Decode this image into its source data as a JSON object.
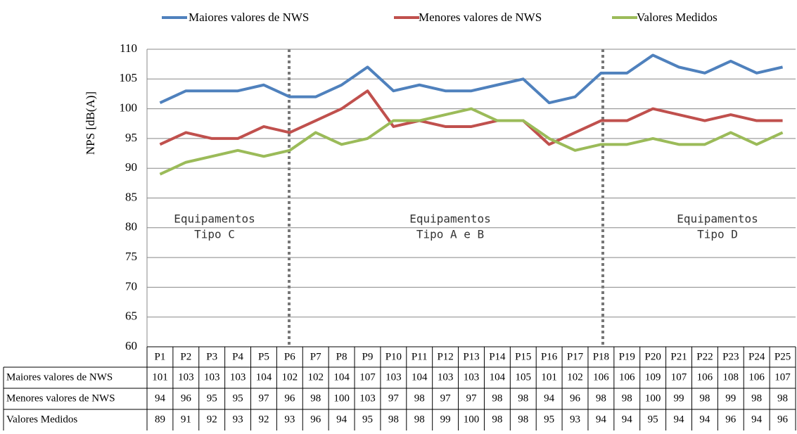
{
  "chart_data": {
    "type": "line",
    "y_label": "NPS [dB(A)]",
    "categories": [
      "P1",
      "P2",
      "P3",
      "P4",
      "P5",
      "P6",
      "P7",
      "P8",
      "P9",
      "P10",
      "P11",
      "P12",
      "P13",
      "P14",
      "P15",
      "P16",
      "P17",
      "P18",
      "P19",
      "P20",
      "P21",
      "P22",
      "P23",
      "P24",
      "P25"
    ],
    "series": [
      {
        "name": "Maiores valores  de NWS",
        "color": "#4f81bd",
        "values": [
          101,
          103,
          103,
          103,
          104,
          102,
          102,
          104,
          107,
          103,
          104,
          103,
          103,
          104,
          105,
          101,
          102,
          106,
          106,
          109,
          107,
          106,
          108,
          106,
          107
        ]
      },
      {
        "name": "Menores valores  de NWS",
        "color": "#c0504d",
        "values": [
          94,
          96,
          95,
          95,
          97,
          96,
          98,
          100,
          103,
          97,
          98,
          97,
          97,
          98,
          98,
          94,
          96,
          98,
          98,
          100,
          99,
          98,
          99,
          98,
          98
        ]
      },
      {
        "name": "Valores Medidos",
        "color": "#9bbb59",
        "values": [
          89,
          91,
          92,
          93,
          92,
          93,
          96,
          94,
          95,
          98,
          98,
          99,
          100,
          98,
          98,
          95,
          93,
          94,
          94,
          95,
          94,
          94,
          96,
          94,
          96
        ]
      }
    ],
    "ylim": [
      60,
      110
    ],
    "yticks": [
      60,
      65,
      70,
      75,
      80,
      85,
      90,
      95,
      100,
      105,
      110
    ],
    "grid": true,
    "annotations": [
      {
        "lines": [
          "Equipamentos",
          "Tipo C"
        ]
      },
      {
        "lines": [
          "Equipamentos",
          "Tipo A e B"
        ]
      },
      {
        "lines": [
          "Equipamentos",
          "Tipo D"
        ]
      }
    ]
  }
}
